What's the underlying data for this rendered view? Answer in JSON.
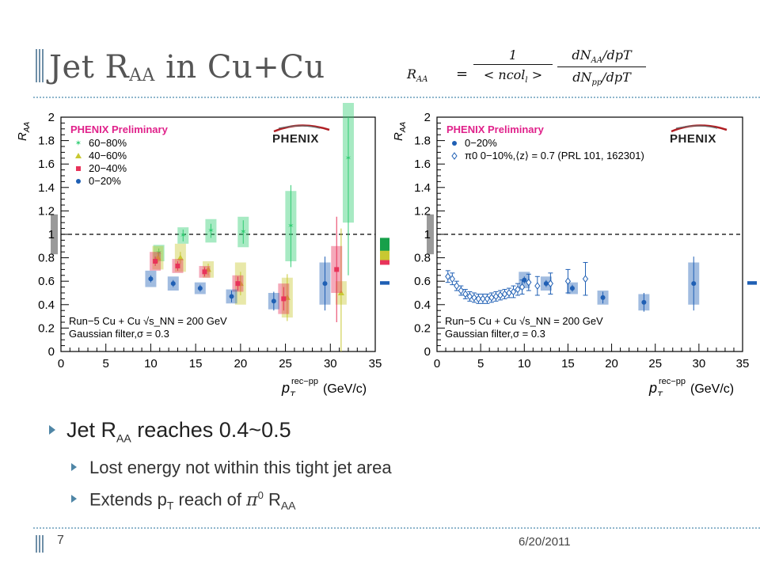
{
  "slide": {
    "title_main": "Jet R",
    "title_sub": "AA",
    "title_rest": " in Cu+Cu",
    "page_number": "7",
    "date": "6/20/2011"
  },
  "formula": {
    "lhs": "R",
    "lhs_sub": "AA",
    "equals": "=",
    "num1": "1",
    "den1": "< ncol",
    "den1_sub": "l",
    "den1_end": " >",
    "num2": "dN",
    "num2_sub": "AA",
    "num2_end": "/dpT",
    "den2": "dN",
    "den2_sub": "pp",
    "den2_end": "/dpT"
  },
  "bullets": {
    "main_a": "Jet R",
    "main_sub": "AA",
    "main_b": " reaches 0.4~0.5",
    "sub1": "Lost energy not within this tight jet area",
    "sub2_a": "Extends p",
    "sub2_sub": "T",
    "sub2_b": " reach of ",
    "sub2_pi": "π",
    "sub2_sup": "0",
    "sub2_c": " R",
    "sub2_sub2": "AA"
  },
  "chart_data": [
    {
      "type": "scatter",
      "title": "",
      "annotation_main": "PHENIX Preliminary",
      "logo": "PHENIX",
      "ylabel": "R_AA",
      "xlabel_main": "p",
      "xlabel_sub": "T",
      "xlabel_sup": "rec−pp",
      "xlabel_unit": "(GeV/c)",
      "footnote1": "Run−5 Cu + Cu √s_NN = 200 GeV",
      "footnote2": "Gaussian filter,σ = 0.3",
      "xlim": [
        0,
        35
      ],
      "ylim": [
        0,
        2
      ],
      "xticks": [
        "0",
        "5",
        "10",
        "15",
        "20",
        "25",
        "30",
        "35"
      ],
      "yticks": [
        "0",
        "0.2",
        "0.4",
        "0.6",
        "0.8",
        "1",
        "1.2",
        "1.4",
        "1.6",
        "1.8",
        "2"
      ],
      "reference_line": 1,
      "legend_position": "top-left",
      "series": [
        {
          "name": "60−80%",
          "color": "#2ecc71",
          "marker": "star",
          "x": [
            10.9,
            13.6,
            16.7,
            20.3,
            25.6,
            32.0
          ],
          "y": [
            0.84,
            0.99,
            1.03,
            1.02,
            1.07,
            1.65
          ],
          "sys": [
            0.07,
            0.07,
            0.1,
            0.13,
            0.3,
            0.55
          ],
          "err": [
            0.04,
            0.05,
            0.06,
            0.1,
            0.35,
            1.0
          ]
        },
        {
          "name": "40−60%",
          "color": "#c8c832",
          "marker": "triangle",
          "x": [
            10.8,
            13.3,
            16.4,
            20.0,
            25.2,
            31.2
          ],
          "y": [
            0.8,
            0.8,
            0.7,
            0.58,
            0.46,
            0.5
          ],
          "sys": [
            0.1,
            0.12,
            0.07,
            0.18,
            0.17,
            0.1
          ],
          "err": [
            0.04,
            0.05,
            0.05,
            0.1,
            0.2,
            0.55
          ]
        },
        {
          "name": "20−40%",
          "color": "#e8335a",
          "marker": "square",
          "x": [
            10.5,
            13.0,
            16.0,
            19.7,
            24.8,
            30.7
          ],
          "y": [
            0.77,
            0.73,
            0.68,
            0.58,
            0.45,
            0.7
          ],
          "sys": [
            0.08,
            0.06,
            0.05,
            0.07,
            0.13,
            0.2
          ],
          "err": [
            0.04,
            0.04,
            0.04,
            0.06,
            0.1,
            0.45
          ]
        },
        {
          "name": "0−20%",
          "color": "#1f5fb4",
          "marker": "circle",
          "x": [
            10.0,
            12.5,
            15.5,
            19.0,
            23.7,
            29.4
          ],
          "y": [
            0.62,
            0.58,
            0.54,
            0.47,
            0.43,
            0.58
          ],
          "sys": [
            0.07,
            0.06,
            0.05,
            0.06,
            0.07,
            0.18
          ],
          "err": [
            0.03,
            0.03,
            0.03,
            0.05,
            0.08,
            0.23
          ]
        }
      ]
    },
    {
      "type": "scatter",
      "title": "",
      "annotation_main": "PHENIX Preliminary",
      "logo": "PHENIX",
      "ylabel": "R_AA",
      "xlabel_main": "p",
      "xlabel_sub": "T",
      "xlabel_sup": "rec−pp",
      "xlabel_unit": "(GeV/c)",
      "footnote1": "Run−5 Cu + Cu √s_NN = 200 GeV",
      "footnote2": "Gaussian filter,σ = 0.3",
      "xlim": [
        0,
        35
      ],
      "ylim": [
        0,
        2
      ],
      "xticks": [
        "0",
        "5",
        "10",
        "15",
        "20",
        "25",
        "30",
        "35"
      ],
      "yticks": [
        "0",
        "0.2",
        "0.4",
        "0.6",
        "0.8",
        "1",
        "1.2",
        "1.4",
        "1.6",
        "1.8",
        "2"
      ],
      "reference_line": 1,
      "legend_position": "top-left",
      "series": [
        {
          "name": "0−20%",
          "color": "#1f5fb4",
          "marker": "circle",
          "x": [
            10.0,
            12.5,
            15.5,
            19.0,
            23.7,
            29.4
          ],
          "y": [
            0.61,
            0.58,
            0.54,
            0.46,
            0.42,
            0.58
          ],
          "sys": [
            0.07,
            0.06,
            0.05,
            0.06,
            0.07,
            0.18
          ],
          "err": [
            0.03,
            0.03,
            0.03,
            0.05,
            0.08,
            0.23
          ]
        },
        {
          "name": "π0 0−10%,⟨z⟩ = 0.7 (PRL 101, 162301)",
          "color": "#1f5fb4",
          "marker": "open-diamond",
          "x": [
            1.25,
            1.75,
            2.25,
            2.75,
            3.25,
            3.75,
            4.25,
            4.75,
            5.25,
            5.75,
            6.25,
            6.75,
            7.25,
            7.75,
            8.25,
            8.75,
            9.25,
            9.75,
            10.5,
            11.5,
            13.0,
            15.0,
            17.0
          ],
          "y": [
            0.64,
            0.62,
            0.56,
            0.52,
            0.49,
            0.47,
            0.46,
            0.45,
            0.45,
            0.45,
            0.46,
            0.47,
            0.48,
            0.49,
            0.5,
            0.51,
            0.53,
            0.55,
            0.59,
            0.56,
            0.58,
            0.6,
            0.62
          ],
          "err": [
            0.05,
            0.05,
            0.04,
            0.04,
            0.04,
            0.04,
            0.04,
            0.04,
            0.04,
            0.04,
            0.04,
            0.04,
            0.04,
            0.04,
            0.04,
            0.05,
            0.05,
            0.06,
            0.07,
            0.08,
            0.09,
            0.1,
            0.14
          ]
        }
      ]
    }
  ]
}
